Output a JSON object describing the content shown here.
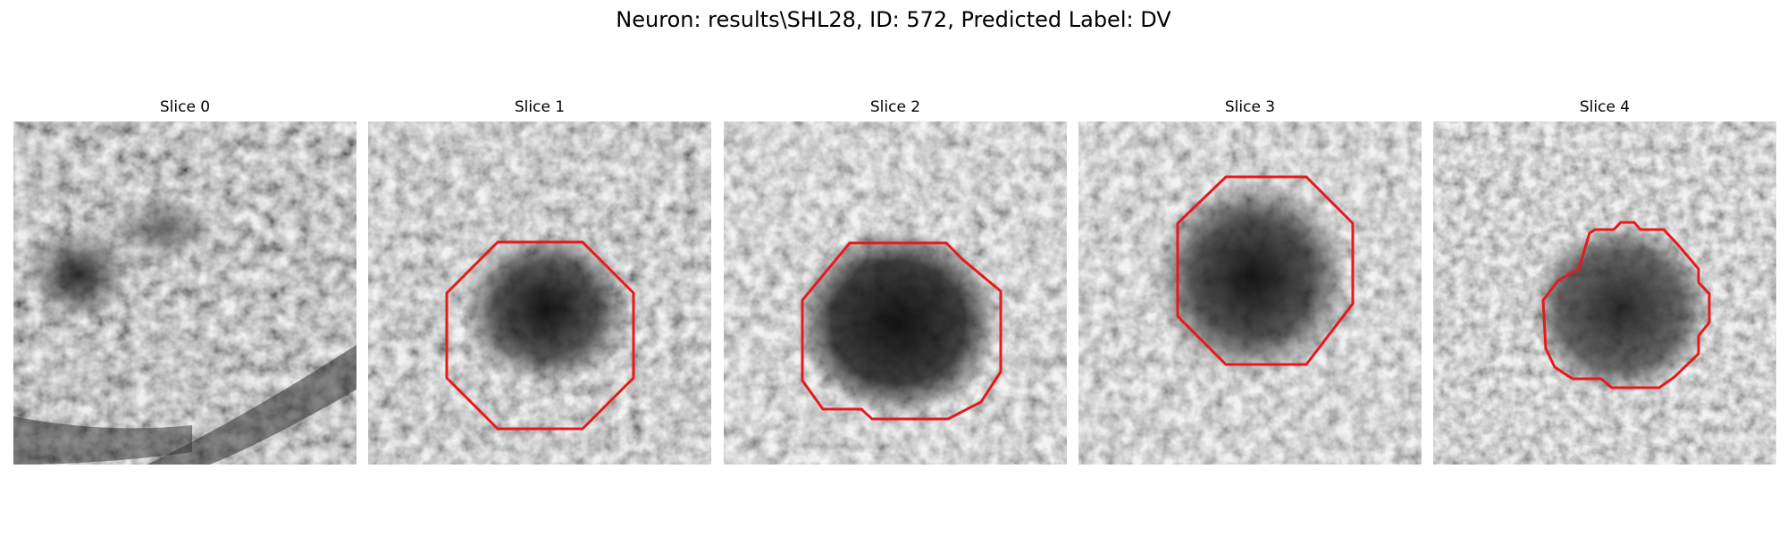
{
  "figure": {
    "title": "Neuron: results\\SHL28, ID: 572, Predicted Label: DV"
  },
  "contour_color": "#e8191c",
  "slices": [
    {
      "title": "Slice 0",
      "has_contour": false
    },
    {
      "title": "Slice 1",
      "has_contour": true
    },
    {
      "title": "Slice 2",
      "has_contour": true
    },
    {
      "title": "Slice 3",
      "has_contour": true
    },
    {
      "title": "Slice 4",
      "has_contour": true
    }
  ]
}
